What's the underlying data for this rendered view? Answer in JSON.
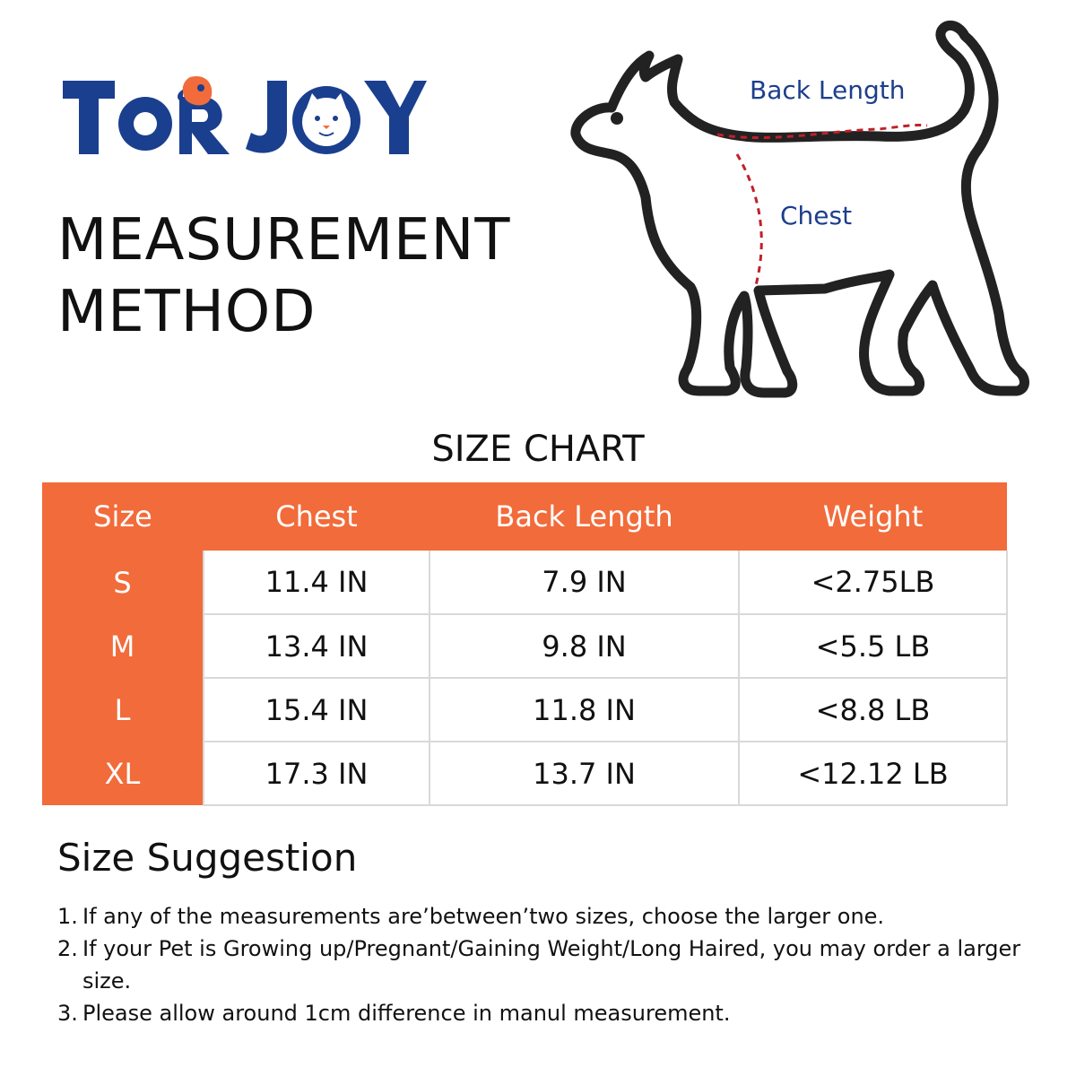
{
  "brand": {
    "name": "TORJOY",
    "colors": {
      "primary": "#1b3f8f",
      "accent": "#f26b3a"
    }
  },
  "header": {
    "title_line1": "MEASUREMENT",
    "title_line2": "METHOD"
  },
  "diagram": {
    "back_length_label": "Back Length",
    "chest_label": "Chest"
  },
  "size_chart": {
    "title": "SIZE CHART",
    "columns": [
      "Size",
      "Chest",
      "Back Length",
      "Weight"
    ],
    "rows": [
      {
        "size": "S",
        "chest": "11.4 IN",
        "back_length": "7.9 IN",
        "weight": "<2.75LB"
      },
      {
        "size": "M",
        "chest": "13.4 IN",
        "back_length": "9.8 IN",
        "weight": "<5.5 LB"
      },
      {
        "size": "L",
        "chest": "15.4 IN",
        "back_length": "11.8 IN",
        "weight": "<8.8 LB"
      },
      {
        "size": "XL",
        "chest": "17.3 IN",
        "back_length": "13.7 IN",
        "weight": "<12.12 LB"
      }
    ]
  },
  "suggestion": {
    "heading": "Size Suggestion",
    "items": [
      {
        "num": "1.",
        "text": "If any of the measurements are’between’two sizes, choose the larger one."
      },
      {
        "num": "2.",
        "text": "If your Pet is Growing up/Pregnant/Gaining Weight/Long Haired, you may order a larger size."
      },
      {
        "num": "3.",
        "text": "Please allow around 1cm difference in manul measurement."
      }
    ]
  }
}
